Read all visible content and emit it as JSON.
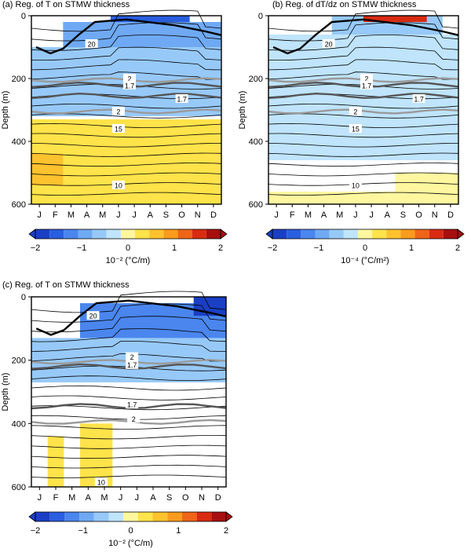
{
  "figure": {
    "colorbar_ticks": [
      "−2",
      "−1",
      "0",
      "1",
      "2"
    ],
    "month_labels": [
      "J",
      "F",
      "M",
      "A",
      "M",
      "J",
      "J",
      "A",
      "S",
      "O",
      "N",
      "D"
    ],
    "depth_ticks": [
      "0",
      "200",
      "400",
      "600"
    ],
    "ylabel": "Depth (m)"
  },
  "colors": {
    "scale": [
      "#1a3fc4",
      "#2a5ee0",
      "#4a86ee",
      "#6fa9f4",
      "#97c9f8",
      "#bfe4fb",
      "#fff7a0",
      "#ffe34a",
      "#fdc22e",
      "#f99b1c",
      "#ef6518",
      "#d92b12",
      "#a80f0f"
    ]
  },
  "chart_data": [
    {
      "type": "heatmap",
      "title": "(a) Reg. of T on STMW thickness",
      "colorbar_label": "10⁻² (°C/m)",
      "clim": [
        -2,
        2
      ],
      "xlabel": "",
      "ylabel": "Depth (m)",
      "ylim": [
        600,
        0
      ],
      "x_categories": [
        "J",
        "F",
        "M",
        "A",
        "M",
        "J",
        "J",
        "A",
        "S",
        "O",
        "N",
        "D"
      ],
      "contour_labels": [
        "20",
        "2",
        "1.7",
        "1.7",
        "2",
        "15",
        "10"
      ],
      "regions": [
        {
          "months": [
            6,
            10
          ],
          "depth": [
            0,
            60
          ],
          "value": -1.4
        },
        {
          "months": [
            3,
            12
          ],
          "depth": [
            20,
            100
          ],
          "value": -0.8
        },
        {
          "months": [
            1,
            12
          ],
          "depth": [
            100,
            320
          ],
          "value": -0.4
        },
        {
          "months": [
            1,
            12
          ],
          "depth": [
            330,
            600
          ],
          "value": 0.35
        },
        {
          "months": [
            1,
            2
          ],
          "depth": [
            440,
            540
          ],
          "value": 0.7
        }
      ]
    },
    {
      "type": "heatmap",
      "title": "(b) Reg. of dT/dz on STMW thickness",
      "colorbar_label": "10⁻⁴ (°C/m²)",
      "clim": [
        -2,
        2
      ],
      "xlabel": "",
      "ylabel": "Depth (m)",
      "ylim": [
        600,
        0
      ],
      "x_categories": [
        "J",
        "F",
        "M",
        "A",
        "M",
        "J",
        "J",
        "A",
        "S",
        "O",
        "N",
        "D"
      ],
      "contour_labels": [
        "20",
        "2",
        "1.7",
        "1.7",
        "2",
        "15",
        "10"
      ],
      "regions": [
        {
          "months": [
            1,
            12
          ],
          "depth": [
            60,
            460
          ],
          "value": -0.3
        },
        {
          "months": [
            5,
            11
          ],
          "depth": [
            0,
            60
          ],
          "value": -0.6
        },
        {
          "months": [
            7,
            10
          ],
          "depth": [
            0,
            20
          ],
          "value": 1.8
        },
        {
          "months": [
            1,
            12
          ],
          "depth": [
            560,
            600
          ],
          "value": 0.1
        },
        {
          "months": [
            9,
            12
          ],
          "depth": [
            500,
            600
          ],
          "value": 0.15
        }
      ]
    },
    {
      "type": "heatmap",
      "title": "(c) Reg. of T on STMW thickness",
      "colorbar_label": "10⁻² (°C/m)",
      "clim": [
        -2,
        2
      ],
      "xlabel": "",
      "ylabel": "Depth (m)",
      "ylim": [
        600,
        0
      ],
      "x_categories": [
        "J",
        "F",
        "M",
        "A",
        "M",
        "J",
        "J",
        "A",
        "S",
        "O",
        "N",
        "D"
      ],
      "contour_labels": [
        "20",
        "2",
        "1.7",
        "1.7",
        "2",
        "10"
      ],
      "regions": [
        {
          "months": [
            4,
            12
          ],
          "depth": [
            20,
            130
          ],
          "value": -1.2
        },
        {
          "months": [
            1,
            12
          ],
          "depth": [
            130,
            270
          ],
          "value": -0.6
        },
        {
          "months": [
            11,
            12
          ],
          "depth": [
            0,
            60
          ],
          "value": -1.8
        },
        {
          "months": [
            2,
            2
          ],
          "depth": [
            440,
            600
          ],
          "value": 0.35
        },
        {
          "months": [
            4,
            5
          ],
          "depth": [
            400,
            600
          ],
          "value": 0.35
        }
      ]
    }
  ]
}
